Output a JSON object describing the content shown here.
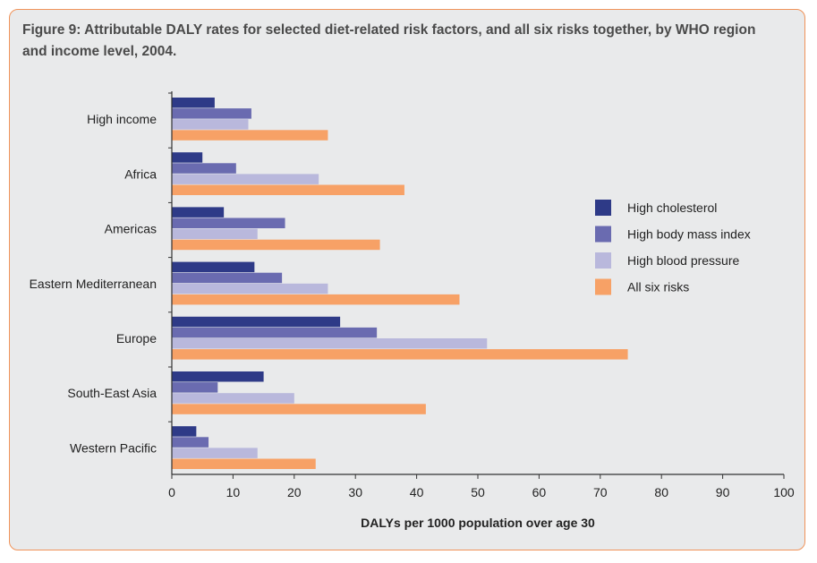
{
  "chart_data": {
    "type": "bar",
    "orientation": "horizontal",
    "title": "Figure 9: Attributable DALY rates for selected diet-related risk factors, and all six risks together, by WHO region and income level, 2004.",
    "xlabel": "DALYs per 1000 population over age 30",
    "xlim": [
      0,
      100
    ],
    "xticks": [
      0,
      10,
      20,
      30,
      40,
      50,
      60,
      70,
      80,
      90,
      100
    ],
    "categories": [
      "High income",
      "Africa",
      "Americas",
      "Eastern Mediterranean",
      "Europe",
      "South-East Asia",
      "Western Pacific"
    ],
    "series": [
      {
        "name": "High cholesterol",
        "color": "#2e3a87",
        "values": [
          7,
          5,
          8.5,
          13.5,
          27.5,
          15,
          4
        ]
      },
      {
        "name": "High body mass index",
        "color": "#6a6bb0",
        "values": [
          13,
          10.5,
          18.5,
          18,
          33.5,
          7.5,
          6
        ]
      },
      {
        "name": "High blood pressure",
        "color": "#b9b8dc",
        "values": [
          12.5,
          24,
          14,
          25.5,
          51.5,
          20,
          14
        ]
      },
      {
        "name": "All six risks",
        "color": "#f7a166",
        "values": [
          25.5,
          38,
          34,
          47,
          74.5,
          41.5,
          23.5
        ]
      }
    ],
    "legend_position": "right",
    "grid": false
  }
}
